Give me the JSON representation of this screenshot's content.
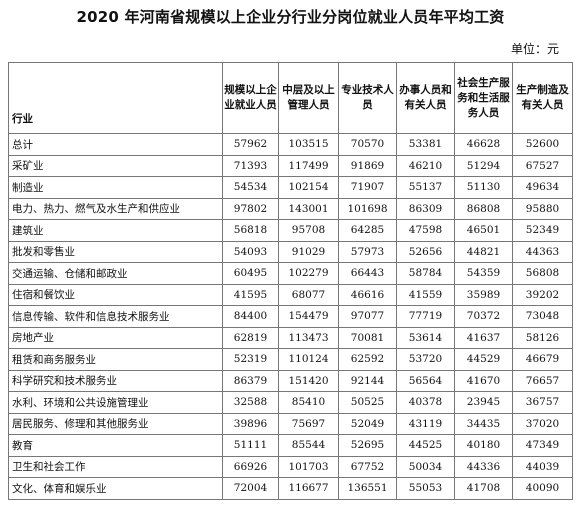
{
  "title": "2020 年河南省规模以上企业分行业分岗位就业人员年平均工资",
  "unit": "单位：元",
  "table": {
    "headers": [
      "行业",
      "规模以上企业就业人员",
      "中层及以上管理人员",
      "专业技术人员",
      "办事人员和有关人员",
      "社会生产服务和生活服务人员",
      "生产制造及有关人员"
    ],
    "rows": [
      [
        "总计",
        "57962",
        "103515",
        "70570",
        "53381",
        "46628",
        "52600"
      ],
      [
        "采矿业",
        "71393",
        "117499",
        "91869",
        "46210",
        "51294",
        "67527"
      ],
      [
        "制造业",
        "54534",
        "102154",
        "71907",
        "55137",
        "51130",
        "49634"
      ],
      [
        "电力、热力、燃气及水生产和供应业",
        "97802",
        "143001",
        "101698",
        "86309",
        "86808",
        "95880"
      ],
      [
        "建筑业",
        "56818",
        "95708",
        "64285",
        "47598",
        "46501",
        "52349"
      ],
      [
        "批发和零售业",
        "54093",
        "91029",
        "57973",
        "52656",
        "44821",
        "44363"
      ],
      [
        "交通运输、仓储和邮政业",
        "60495",
        "102279",
        "66443",
        "58784",
        "54359",
        "56808"
      ],
      [
        "住宿和餐饮业",
        "41595",
        "68077",
        "46616",
        "41559",
        "35989",
        "39202"
      ],
      [
        "信息传输、软件和信息技术服务业",
        "84400",
        "154479",
        "97077",
        "77719",
        "70372",
        "73048"
      ],
      [
        "房地产业",
        "62819",
        "113473",
        "70081",
        "53614",
        "41637",
        "58126"
      ],
      [
        "租赁和商务服务业",
        "52319",
        "110124",
        "62592",
        "53720",
        "44529",
        "46679"
      ],
      [
        "科学研究和技术服务业",
        "86379",
        "151420",
        "92144",
        "56564",
        "41670",
        "76657"
      ],
      [
        "水利、环境和公共设施管理业",
        "32588",
        "85410",
        "50525",
        "40378",
        "23945",
        "36757"
      ],
      [
        "居民服务、修理和其他服务业",
        "39896",
        "75697",
        "52049",
        "43119",
        "34435",
        "37020"
      ],
      [
        "教育",
        "51111",
        "85544",
        "52695",
        "44525",
        "40180",
        "47349"
      ],
      [
        "卫生和社会工作",
        "66926",
        "101703",
        "67752",
        "50034",
        "44336",
        "44039"
      ],
      [
        "文化、体育和娱乐业",
        "72004",
        "116677",
        "136551",
        "55053",
        "41708",
        "40090"
      ]
    ]
  }
}
